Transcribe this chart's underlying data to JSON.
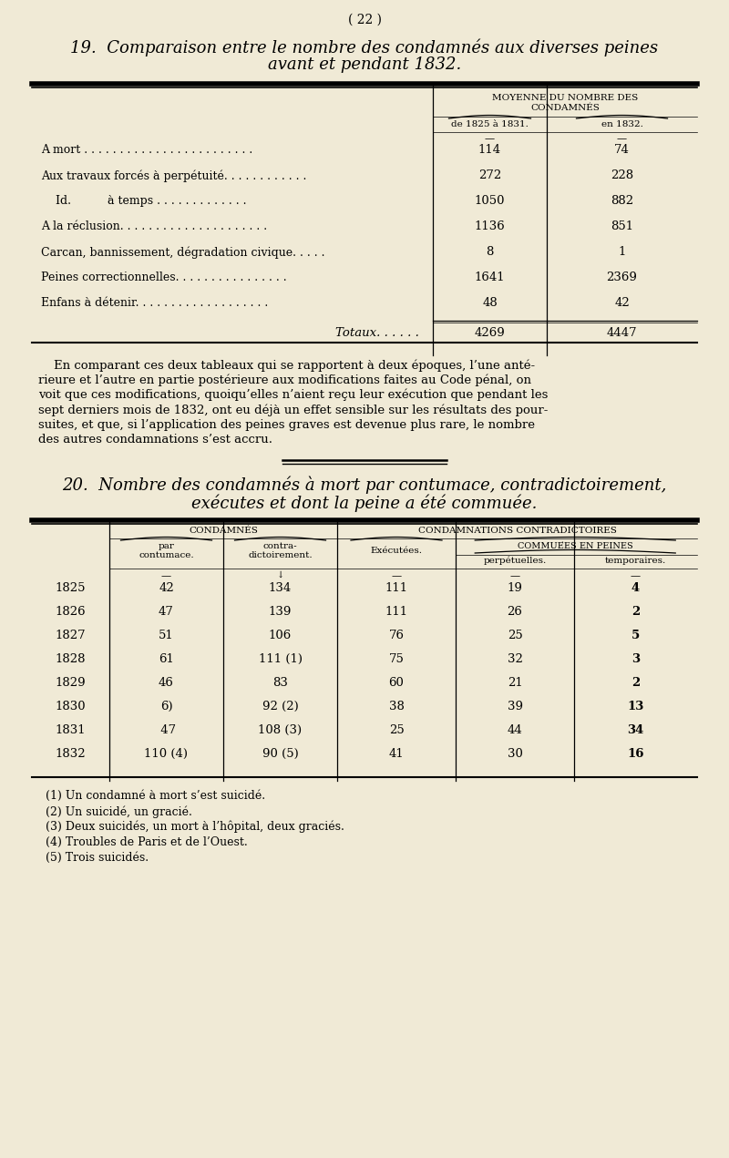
{
  "bg_color": "#f0ead6",
  "page_number": "( 22 )",
  "section19_title_line1": "19.  Comparaison entre le nombre des condamnés aux diverses peines",
  "section19_title_line2": "avant et pendant 1832.",
  "table1_header_line1": "MOYENNE DU NOMBRE DES",
  "table1_header_line2": "CONDAMNÉS",
  "table1_col1_header": "de 1825 à 1831.",
  "table1_col2_header": "en 1832.",
  "table1_rows": [
    {
      "label": "A mort . . . . . . . . . . . . . . . . . . . . . . . .",
      "v1": "114",
      "v2": "74"
    },
    {
      "label": "Aux travaux forcés à perpétuité. . . . . . . . . . . .",
      "v1": "272",
      "v2": "228"
    },
    {
      "label": "    Id.          à temps . . . . . . . . . . . . .",
      "v1": "1050",
      "v2": "882"
    },
    {
      "label": "A la réclusion. . . . . . . . . . . . . . . . . . . . .",
      "v1": "1136",
      "v2": "851"
    },
    {
      "label": "Carcan, bannissement, dégradation civique. . . . .",
      "v1": "8",
      "v2": "1"
    },
    {
      "label": "Peines correctionnelles. . . . . . . . . . . . . . . .",
      "v1": "1641",
      "v2": "2369"
    },
    {
      "label": "Enfans à détenir. . . . . . . . . . . . . . . . . . .",
      "v1": "48",
      "v2": "42"
    }
  ],
  "table1_total_label": "Totaux. . . . . .",
  "table1_total_v1": "4269",
  "table1_total_v2": "4447",
  "paragraph_text": "    En comparant ces deux tableaux qui se rapportent à deux époques, l’une anté-\nrieure et l’autre en partie postérieure aux modifications faites au Code pénal, on\nvoit que ces modifications, quoiqu’elles n’aient reçu leur exécution que pendant les\nsept derniers mois de 1832, ont eu déjà un effet sensible sur les résultats des pour-\nsuites, et que, si l’application des peines graves est devenue plus rare, le nombre\ndes autres condamnations s’est accru.",
  "section20_title_line1": "20.  Nombre des condamnés à mort par contumace, contradictoirement,",
  "section20_title_line2": "exécutes et dont la peine a été commuée.",
  "table2_condamnes_header": "CONDAMNÉS",
  "table2_condamnations_header": "CONDAMNATIONS CONTRADICTOIRES",
  "table2_sub_col1a": "par",
  "table2_sub_col1b": "contumace.",
  "table2_sub_col2a": "contra-",
  "table2_sub_col2b": "dictoirement.",
  "table2_executees": "Exécutées.",
  "table2_commuees": "COMMUÉES EN PEINES",
  "table2_perpetuelles": "perpétuelles.",
  "table2_temporaires": "temporaires.",
  "table2_rows": [
    {
      "year": "1825",
      "c1": "42",
      "c2": "134",
      "c3": "111",
      "c4": "19",
      "c5": "4"
    },
    {
      "year": "1826",
      "c1": "47",
      "c2": "139",
      "c3": "111",
      "c4": "26",
      "c5": "2"
    },
    {
      "year": "1827",
      "c1": "51",
      "c2": "106",
      "c3": "76",
      "c4": "25",
      "c5": "5"
    },
    {
      "year": "1828",
      "c1": "61",
      "c2": "111 (1)",
      "c3": "75",
      "c4": "32",
      "c5": "3"
    },
    {
      "year": "1829",
      "c1": "46",
      "c2": "83",
      "c3": "60",
      "c4": "21",
      "c5": "2"
    },
    {
      "year": "1830",
      "c1": "6)",
      "c2": "92 (2)",
      "c3": "38",
      "c4": "39",
      "c5": "13"
    },
    {
      "year": "1831",
      "c1": " 47",
      "c2": "108 (3)",
      "c3": "25",
      "c4": "44",
      "c5": "34"
    },
    {
      "year": "1832",
      "c1": "110 (4)",
      "c2": "90 (5)",
      "c3": "41",
      "c4": "30",
      "c5": "16"
    }
  ],
  "footnotes": [
    "(1) Un condamné à mort s’est suicidé.",
    "(2) Un suicidé, un gracié.",
    "(3) Deux suicidés, un mort à l’hôpital, deux graciés.",
    "(4) Troubles de Paris et de l’Ouest.",
    "(5) Trois suicidés."
  ]
}
